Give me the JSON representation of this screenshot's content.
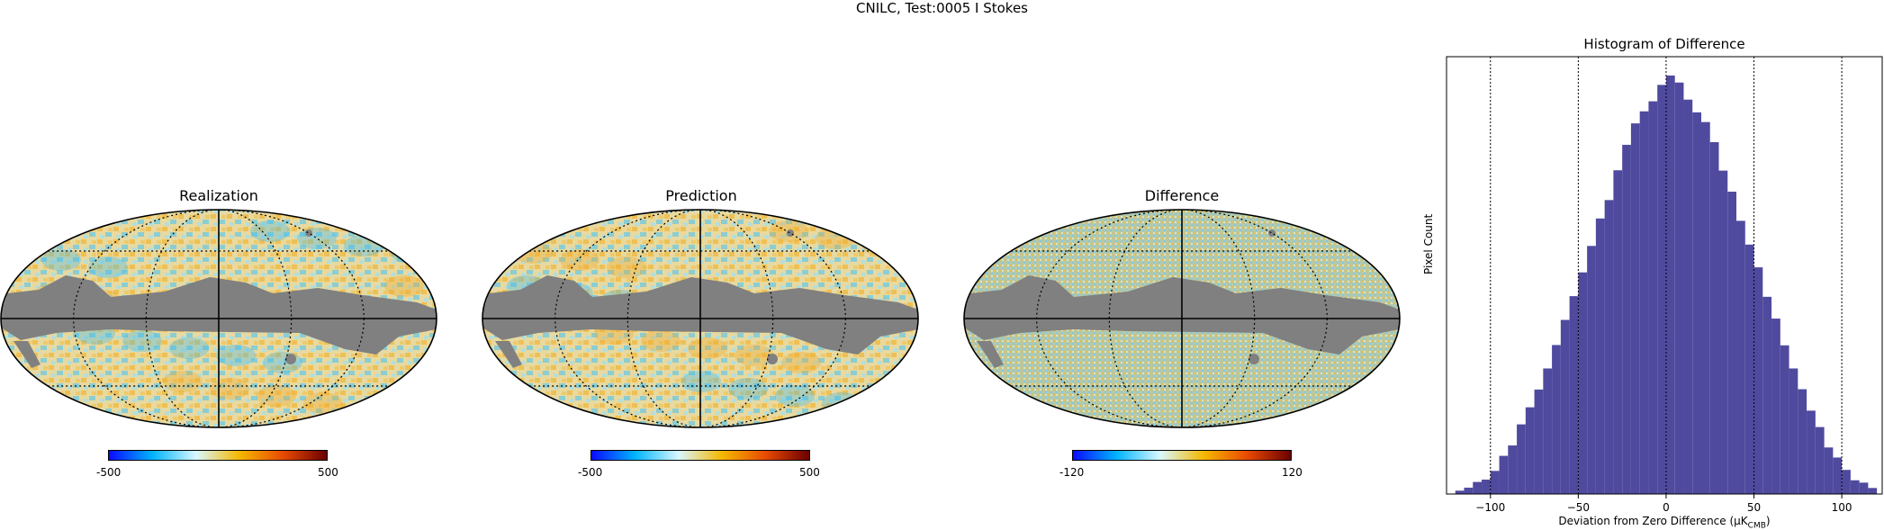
{
  "suptitle": "CNILC, Test:0005 I Stokes",
  "maps": [
    {
      "title": "Realization",
      "cmin": "-500",
      "cmax": "500"
    },
    {
      "title": "Prediction",
      "cmin": "-500",
      "cmax": "500"
    },
    {
      "title": "Difference",
      "cmin": "-120",
      "cmax": "120"
    }
  ],
  "colors": {
    "mask": "#808080",
    "bar": "#4f4a9e",
    "cmap": [
      "#0a0aff",
      "#00b4ff",
      "#d8f8ff",
      "#f5b800",
      "#e84a00",
      "#6a0000"
    ]
  },
  "chart_data": {
    "type": "bar",
    "title": "Histogram of Difference",
    "xlabel": "Deviation from Zero Difference (μK",
    "xlabel_sub": "CMB",
    "xlabel_tail": ")",
    "ylabel": "Pixel Count",
    "xlim": [
      -125,
      123
    ],
    "x_ticks": [
      "−100",
      "−50",
      "0",
      "50",
      "100"
    ],
    "x_tick_values": [
      -100,
      -50,
      0,
      50,
      100
    ],
    "vlines": [
      -100,
      -50,
      0,
      50,
      100
    ],
    "bin_width": 5,
    "bin_starts": [
      -120,
      -115,
      -110,
      -105,
      -100,
      -95,
      -90,
      -85,
      -80,
      -75,
      -70,
      -65,
      -60,
      -55,
      -50,
      -45,
      -40,
      -35,
      -30,
      -25,
      -20,
      -15,
      -10,
      -5,
      0,
      5,
      10,
      15,
      20,
      25,
      30,
      35,
      40,
      45,
      50,
      55,
      60,
      65,
      70,
      75,
      80,
      85,
      90,
      95,
      100,
      105,
      110,
      115
    ],
    "values": [
      1.0,
      1.9,
      3.6,
      4.3,
      6.9,
      11.4,
      14.5,
      20.8,
      25.9,
      31.2,
      37.5,
      44.5,
      52.0,
      59.1,
      66.2,
      74.1,
      82.3,
      87.8,
      96.7,
      104.3,
      110.7,
      114.3,
      117.3,
      122.2,
      125.0,
      122.9,
      117.8,
      114.0,
      111.1,
      105.1,
      96.6,
      90.3,
      81.6,
      74.5,
      67.7,
      58.9,
      52.4,
      44.4,
      37.5,
      31.3,
      24.9,
      20.0,
      13.9,
      10.9,
      7.2,
      4.1,
      3.4,
      1.8
    ]
  }
}
